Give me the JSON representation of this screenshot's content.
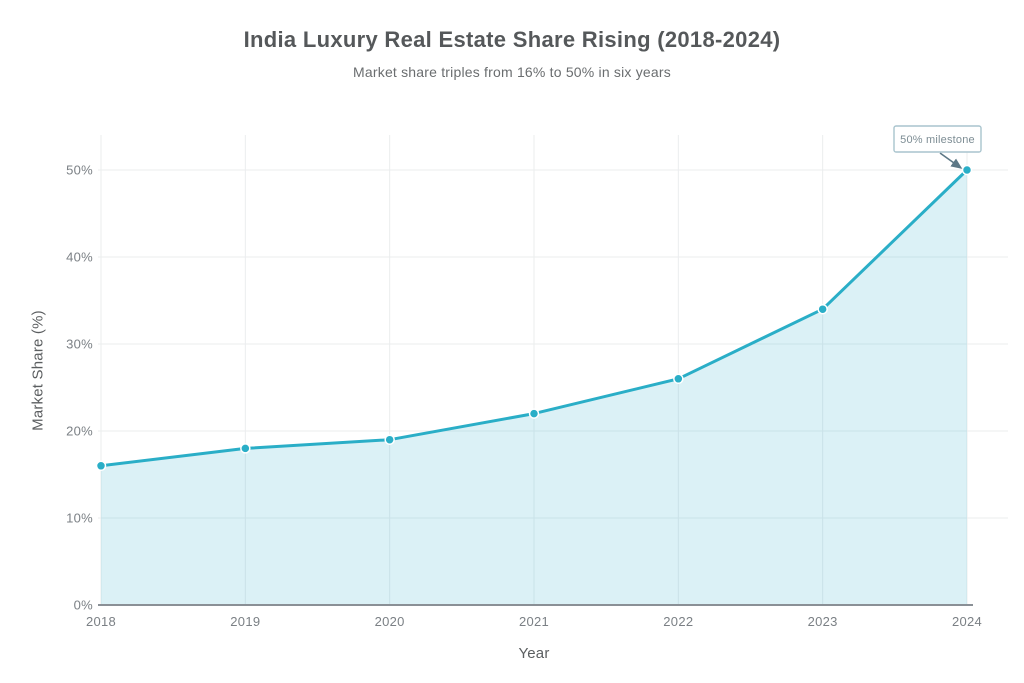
{
  "header": {
    "title": "India Luxury Real Estate Share Rising (2018-2024)",
    "subtitle": "Market share triples from 16% to 50% in six years"
  },
  "annotation": {
    "label": "50% milestone"
  },
  "chart_data": {
    "type": "area",
    "categories": [
      "2018",
      "2019",
      "2020",
      "2021",
      "2022",
      "2023",
      "2024"
    ],
    "values": [
      16,
      18,
      19,
      22,
      26,
      34,
      50
    ],
    "title": "India Luxury Real Estate Share Rising (2018-2024)",
    "subtitle": "Market share triples from 16% to 50% in six years",
    "xlabel": "Year",
    "ylabel": "Market Share (%)",
    "ylim": [
      0,
      55
    ],
    "y_ticks": [
      0,
      10,
      20,
      30,
      40,
      50
    ],
    "y_tick_labels": [
      "0%",
      "10%",
      "20%",
      "30%",
      "40%",
      "50%"
    ],
    "grid": true,
    "legend": "none",
    "annotation": {
      "text": "50% milestone",
      "target_category": "2024",
      "target_value": 50
    },
    "colors": {
      "line": "#2aaec7",
      "point": "#2aaec7",
      "point_halo": "#ffffff",
      "fill": "#2aaec7",
      "grid": "#ebedee",
      "axis_line": "#8a9096",
      "tick_text": "#7b8085",
      "arrow": "#5d7886",
      "annotation_border": "#a9c4ce",
      "annotation_bg": "#ffffff",
      "annotation_text": "#7d8d94"
    }
  }
}
